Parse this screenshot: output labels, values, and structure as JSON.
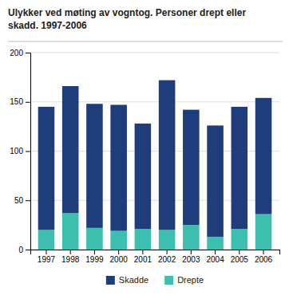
{
  "chart_data": {
    "type": "bar",
    "stacked": true,
    "title": "Ulykker ved møting av vogntog. Personer drept eller\nskadd. 1997-2006",
    "categories": [
      "1997",
      "1998",
      "1999",
      "2000",
      "2001",
      "2002",
      "2003",
      "2004",
      "2005",
      "2006"
    ],
    "series": [
      {
        "name": "Drepte",
        "color": "#3dbfb0",
        "values": [
          20,
          37,
          22,
          19,
          21,
          20,
          25,
          13,
          21,
          36
        ]
      },
      {
        "name": "Skadde",
        "color": "#1f3d7a",
        "values": [
          125,
          129,
          126,
          128,
          107,
          152,
          117,
          113,
          124,
          118
        ]
      }
    ],
    "ylim": [
      0,
      200
    ],
    "yticks": [
      0,
      50,
      100,
      150,
      200
    ],
    "grid": true
  }
}
